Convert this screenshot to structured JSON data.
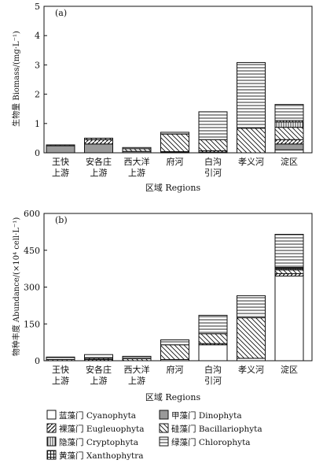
{
  "chart_data": [
    {
      "panel": "(a)",
      "type": "bar",
      "stacked": true,
      "ylabel": "生物量 Biomass/(mg·L⁻¹)",
      "xlabel": "区域 Regions",
      "ylim": [
        0,
        5
      ],
      "yticks": [
        0,
        1,
        2,
        3,
        4,
        5
      ],
      "categories": [
        [
          "王快",
          "上游"
        ],
        [
          "安各庄",
          "上游"
        ],
        [
          "西大洋",
          "上游"
        ],
        [
          "府河"
        ],
        [
          "白沟",
          "引河"
        ],
        [
          "孝义河"
        ],
        [
          "淀区"
        ]
      ],
      "series": [
        {
          "key": "cyano",
          "values": [
            0.0,
            0.0,
            0.0,
            0.02,
            0.02,
            0.0,
            0.1
          ]
        },
        {
          "key": "dino",
          "values": [
            0.24,
            0.3,
            0.05,
            0.0,
            0.0,
            0.0,
            0.2
          ]
        },
        {
          "key": "eugle",
          "values": [
            0.0,
            0.15,
            0.0,
            0.02,
            0.05,
            0.0,
            0.15
          ]
        },
        {
          "key": "bacil",
          "values": [
            0.03,
            0.05,
            0.09,
            0.6,
            0.38,
            0.84,
            0.42
          ]
        },
        {
          "key": "crypto",
          "values": [
            0.0,
            0.0,
            0.0,
            0.0,
            0.0,
            0.0,
            0.18
          ]
        },
        {
          "key": "xantho",
          "values": [
            0.0,
            0.0,
            0.0,
            0.0,
            0.0,
            0.0,
            0.05
          ]
        },
        {
          "key": "chloro",
          "values": [
            0.0,
            0.0,
            0.04,
            0.06,
            0.95,
            2.24,
            0.55
          ]
        }
      ]
    },
    {
      "panel": "(b)",
      "type": "bar",
      "stacked": true,
      "ylabel": "物种丰度 Abundance/(×10⁴ cell·L⁻¹)",
      "xlabel": "区域 Regions",
      "ylim": [
        0,
        600
      ],
      "yticks": [
        0,
        150,
        300,
        450,
        600
      ],
      "categories": [
        [
          "王快",
          "上游"
        ],
        [
          "安各庄",
          "上游"
        ],
        [
          "西大洋",
          "上游"
        ],
        [
          "府河"
        ],
        [
          "白沟",
          "引河"
        ],
        [
          "孝义河"
        ],
        [
          "淀区"
        ]
      ],
      "series": [
        {
          "key": "cyano",
          "values": [
            0,
            0,
            0,
            5,
            65,
            10,
            345
          ]
        },
        {
          "key": "dino",
          "values": [
            0,
            0,
            0,
            0,
            0,
            0,
            0
          ]
        },
        {
          "key": "eugle",
          "values": [
            0,
            5,
            0,
            0,
            5,
            0,
            10
          ]
        },
        {
          "key": "bacil",
          "values": [
            5,
            5,
            8,
            60,
            40,
            165,
            15
          ]
        },
        {
          "key": "crypto",
          "values": [
            0,
            0,
            0,
            0,
            0,
            0,
            5
          ]
        },
        {
          "key": "xantho",
          "values": [
            0,
            0,
            0,
            0,
            0,
            0,
            5
          ]
        },
        {
          "key": "chloro",
          "values": [
            10,
            15,
            10,
            20,
            75,
            90,
            135
          ]
        }
      ]
    }
  ],
  "legend": {
    "placement": "bottom",
    "items": [
      {
        "key": "cyano",
        "label": "蓝藻门 Cyanophyta"
      },
      {
        "key": "dino",
        "label": "甲藻门 Dinophyta"
      },
      {
        "key": "eugle",
        "label": "裸藻门 Eugleuophyta"
      },
      {
        "key": "bacil",
        "label": "硅藻门 Bacillariophyta"
      },
      {
        "key": "crypto",
        "label": "隐藻门 Cryptophyta"
      },
      {
        "key": "chloro",
        "label": "绿藻门 Chlorophyta"
      },
      {
        "key": "xantho",
        "label": "黄藻门 Xanthophytra"
      }
    ]
  }
}
